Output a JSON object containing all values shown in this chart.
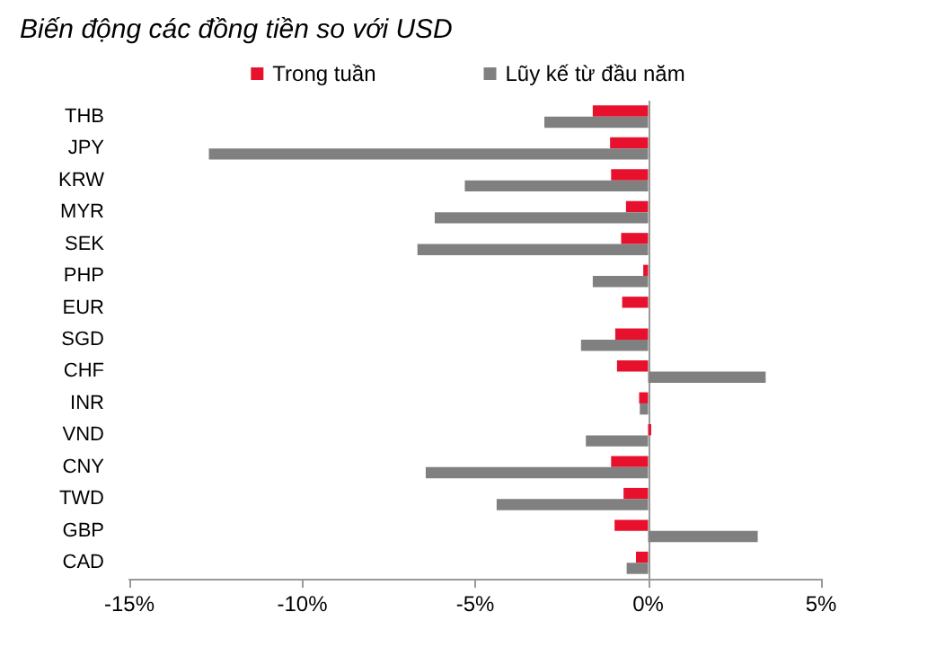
{
  "chart_data": {
    "type": "bar",
    "orientation": "horizontal",
    "title": "Biến động các đồng tiền so với USD",
    "categories": [
      "THB",
      "JPY",
      "KRW",
      "MYR",
      "SEK",
      "PHP",
      "EUR",
      "SGD",
      "CHF",
      "INR",
      "VND",
      "CNY",
      "TWD",
      "GBP",
      "CAD"
    ],
    "series": [
      {
        "name": "Trong tuần",
        "color": "#e8112d",
        "values": [
          -1.6,
          -1.1,
          -1.07,
          -0.64,
          -0.78,
          -0.14,
          -0.75,
          -0.95,
          -0.9,
          -0.26,
          0.09,
          -1.07,
          -0.71,
          -0.97,
          -0.35
        ]
      },
      {
        "name": "Lũy kế từ đầu năm",
        "color": "#808080",
        "values": [
          -3.0,
          -12.7,
          -5.3,
          -6.17,
          -6.67,
          -1.6,
          0,
          -1.94,
          3.4,
          -0.24,
          -1.8,
          -6.43,
          -4.38,
          3.17,
          -0.62
        ]
      }
    ],
    "xlim": [
      -15,
      5
    ],
    "xticks": [
      {
        "value": -15,
        "label": "-15%"
      },
      {
        "value": -10,
        "label": "-10%"
      },
      {
        "value": -5,
        "label": "-5%"
      },
      {
        "value": 0,
        "label": "0%"
      },
      {
        "value": 5,
        "label": "5%"
      }
    ],
    "ref_lines": [
      {
        "axis": "x",
        "value": 0,
        "color": "#999999"
      }
    ],
    "grid": false,
    "legend": "top"
  }
}
